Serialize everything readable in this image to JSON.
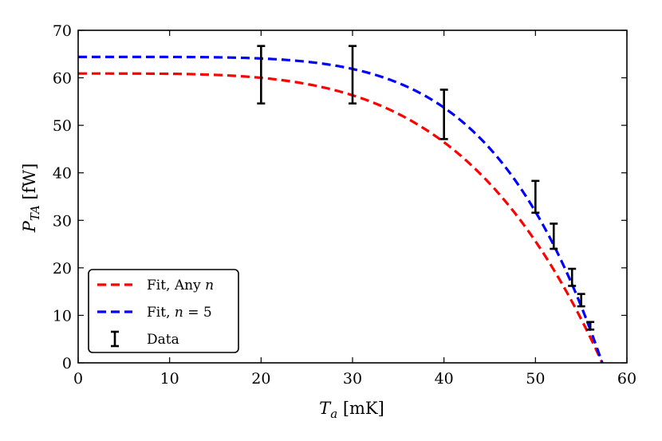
{
  "chart_data": {
    "type": "line",
    "xlabel": "T_a [mK]",
    "ylabel": "P_TA [fW]",
    "xlim": [
      0,
      60
    ],
    "ylim": [
      0,
      70
    ],
    "xticks": [
      0,
      10,
      20,
      30,
      40,
      50,
      60
    ],
    "yticks": [
      0,
      10,
      20,
      30,
      40,
      50,
      60,
      70
    ],
    "grid": false,
    "legend_position": "bottom-left",
    "series": [
      {
        "name": "Fit, Any n",
        "style": "dashed",
        "color": "#ff0000",
        "model": {
          "P0": 60.9,
          "Tc": 57.3,
          "n": 4.0
        }
      },
      {
        "name": "Fit, n = 5",
        "style": "dashed",
        "color": "#0000ff",
        "model": {
          "P0": 64.4,
          "Tc": 57.3,
          "n": 5.0
        }
      },
      {
        "name": "Data",
        "style": "errorbar",
        "color": "#000000",
        "points": [
          {
            "x": 20,
            "y": 60.7,
            "ylow": 54.6,
            "yhigh": 66.7
          },
          {
            "x": 30,
            "y": 60.7,
            "ylow": 54.6,
            "yhigh": 66.7
          },
          {
            "x": 40,
            "y": 52.3,
            "ylow": 47.1,
            "yhigh": 57.5
          },
          {
            "x": 50,
            "y": 35.0,
            "ylow": 31.6,
            "yhigh": 38.3
          },
          {
            "x": 52,
            "y": 26.7,
            "ylow": 24.0,
            "yhigh": 29.3
          },
          {
            "x": 54,
            "y": 18.0,
            "ylow": 16.2,
            "yhigh": 19.8
          },
          {
            "x": 55,
            "y": 13.2,
            "ylow": 11.9,
            "yhigh": 14.5
          },
          {
            "x": 56,
            "y": 7.8,
            "ylow": 7.0,
            "yhigh": 8.6
          }
        ]
      }
    ],
    "legend": [
      {
        "label": "Fit, Any n",
        "label_prefix": "Fit, Any ",
        "label_var": "n",
        "color": "#ff0000",
        "marker": "dash"
      },
      {
        "label": "Fit, n = 5",
        "label_prefix": "Fit, ",
        "label_var": "n",
        "label_suffix": " = 5",
        "color": "#0000ff",
        "marker": "dash"
      },
      {
        "label": "Data",
        "label_prefix": "Data",
        "color": "#000000",
        "marker": "errorbar"
      }
    ]
  }
}
